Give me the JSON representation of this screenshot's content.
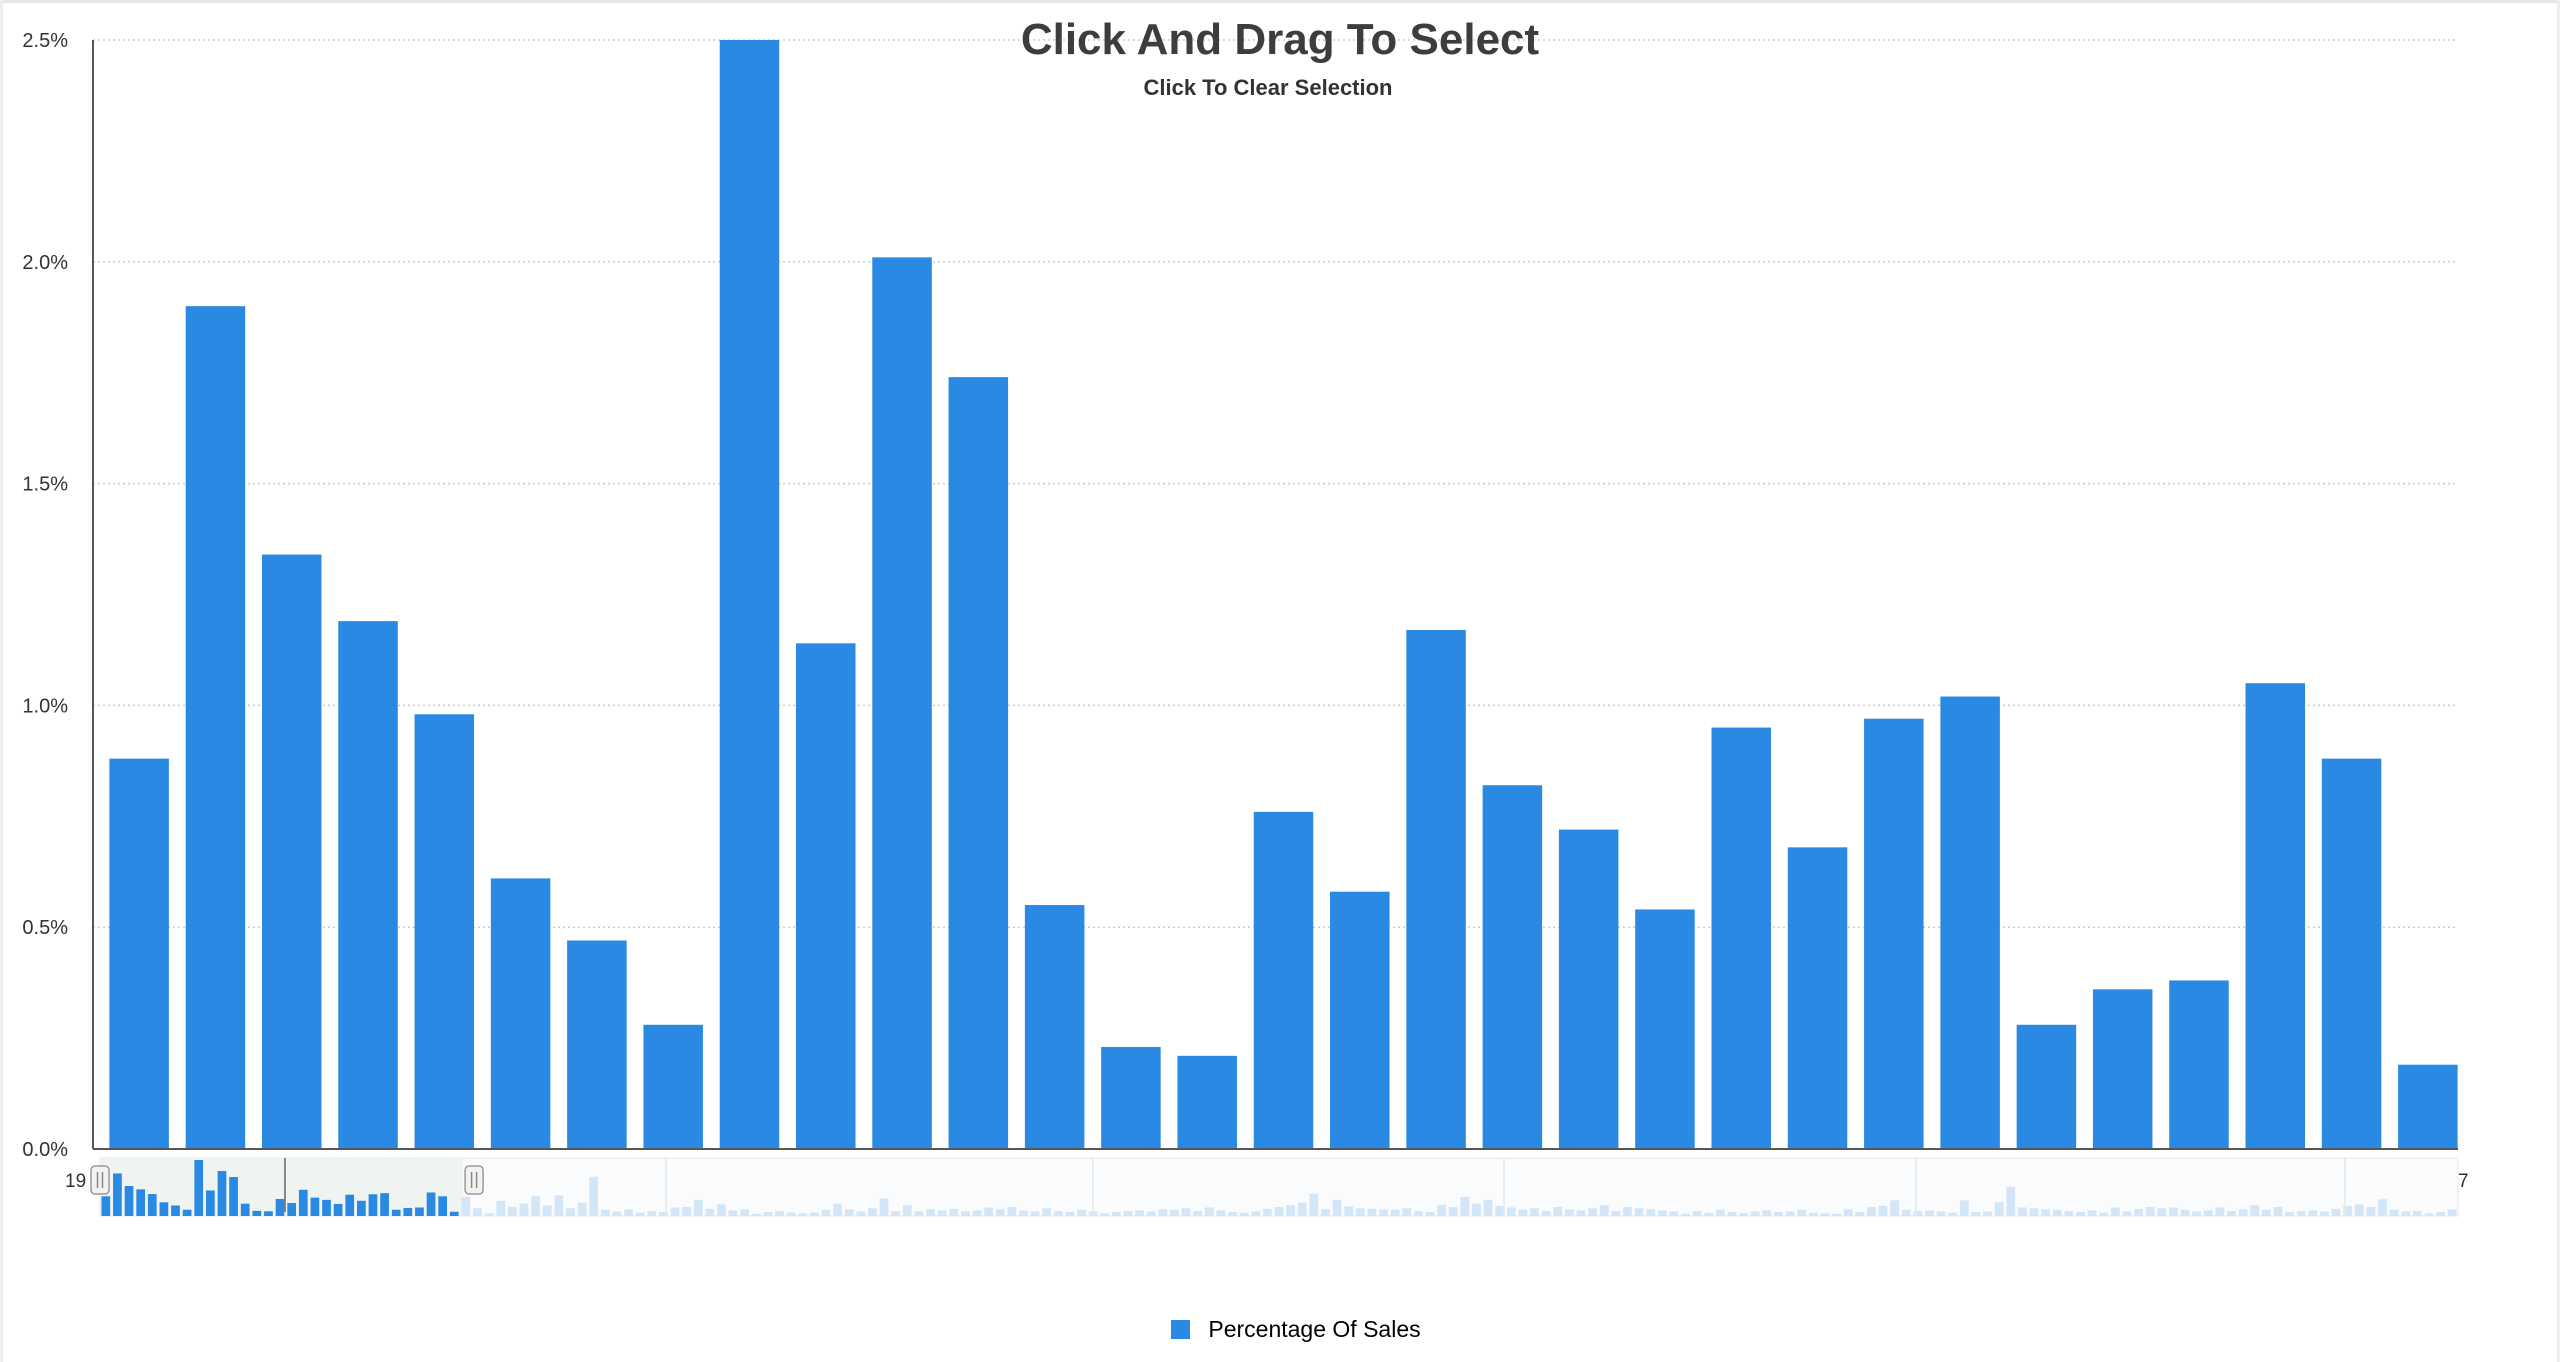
{
  "colors": {
    "bar": "#2a89e2",
    "navigator_bar": "#d3e6f8",
    "grid": "#cccccc",
    "axis": "#555555",
    "text": "#333333",
    "title": "#3d3d3d"
  },
  "chart_data": {
    "type": "bar",
    "title": "Click And Drag To Select",
    "subtitle": "Click To Clear Selection",
    "xlabel": "",
    "ylabel": "",
    "ylim": [
      0,
      2.5
    ],
    "y_ticks": [
      "0.0%",
      "0.5%",
      "1.0%",
      "1.5%",
      "2.0%",
      "2.5%"
    ],
    "grid": true,
    "legend_position": "bottom-center",
    "series": [
      {
        "name": "Percentage Of Sales",
        "values": [
          0.88,
          1.9,
          1.34,
          1.19,
          0.98,
          0.61,
          0.47,
          0.28,
          2.5,
          1.14,
          2.01,
          1.74,
          0.55,
          0.23,
          0.21,
          0.76,
          0.58,
          1.17,
          0.82,
          0.72,
          0.54,
          0.95,
          0.68,
          0.97,
          1.02,
          0.28,
          0.36,
          0.38,
          1.05,
          0.88,
          0.19
        ]
      }
    ],
    "navigator": {
      "left_label": "19",
      "right_label": "7",
      "values": [
        0.88,
        1.9,
        1.34,
        1.19,
        0.98,
        0.61,
        0.47,
        0.28,
        2.5,
        1.14,
        2.01,
        1.74,
        0.55,
        0.23,
        0.21,
        0.76,
        0.58,
        1.17,
        0.82,
        0.72,
        0.54,
        0.95,
        0.68,
        0.97,
        1.02,
        0.28,
        0.36,
        0.38,
        1.05,
        0.88,
        0.19,
        0.85,
        0.35,
        0.12,
        0.68,
        0.41,
        0.55,
        0.88,
        0.47,
        0.92,
        0.35,
        0.6,
        1.75,
        0.28,
        0.2,
        0.3,
        0.15,
        0.22,
        0.18,
        0.38,
        0.4,
        0.72,
        0.32,
        0.52,
        0.25,
        0.3,
        0.1,
        0.18,
        0.22,
        0.15,
        0.12,
        0.15,
        0.28,
        0.55,
        0.3,
        0.2,
        0.35,
        0.78,
        0.22,
        0.48,
        0.2,
        0.3,
        0.25,
        0.32,
        0.2,
        0.25,
        0.38,
        0.3,
        0.4,
        0.25,
        0.2,
        0.35,
        0.22,
        0.18,
        0.28,
        0.2,
        0.12,
        0.18,
        0.22,
        0.25,
        0.2,
        0.3,
        0.28,
        0.35,
        0.22,
        0.38,
        0.25,
        0.18,
        0.15,
        0.2,
        0.32,
        0.4,
        0.48,
        0.6,
        1.0,
        0.3,
        0.72,
        0.42,
        0.35,
        0.32,
        0.3,
        0.28,
        0.35,
        0.22,
        0.18,
        0.5,
        0.4,
        0.85,
        0.55,
        0.72,
        0.45,
        0.38,
        0.28,
        0.35,
        0.22,
        0.4,
        0.3,
        0.25,
        0.35,
        0.48,
        0.22,
        0.4,
        0.35,
        0.3,
        0.25,
        0.2,
        0.1,
        0.22,
        0.15,
        0.28,
        0.18,
        0.12,
        0.2,
        0.25,
        0.18,
        0.2,
        0.28,
        0.15,
        0.12,
        0.1,
        0.3,
        0.18,
        0.4,
        0.45,
        0.7,
        0.28,
        0.22,
        0.25,
        0.2,
        0.15,
        0.7,
        0.18,
        0.2,
        0.62,
        1.3,
        0.38,
        0.35,
        0.3,
        0.28,
        0.22,
        0.18,
        0.25,
        0.15,
        0.38,
        0.2,
        0.32,
        0.4,
        0.35,
        0.38,
        0.28,
        0.2,
        0.25,
        0.38,
        0.22,
        0.3,
        0.48,
        0.28,
        0.4,
        0.18,
        0.22,
        0.25,
        0.2,
        0.32,
        0.45,
        0.52,
        0.4,
        0.75,
        0.28,
        0.2,
        0.22,
        0.12,
        0.18,
        0.3
      ],
      "selected_count": 31
    }
  }
}
